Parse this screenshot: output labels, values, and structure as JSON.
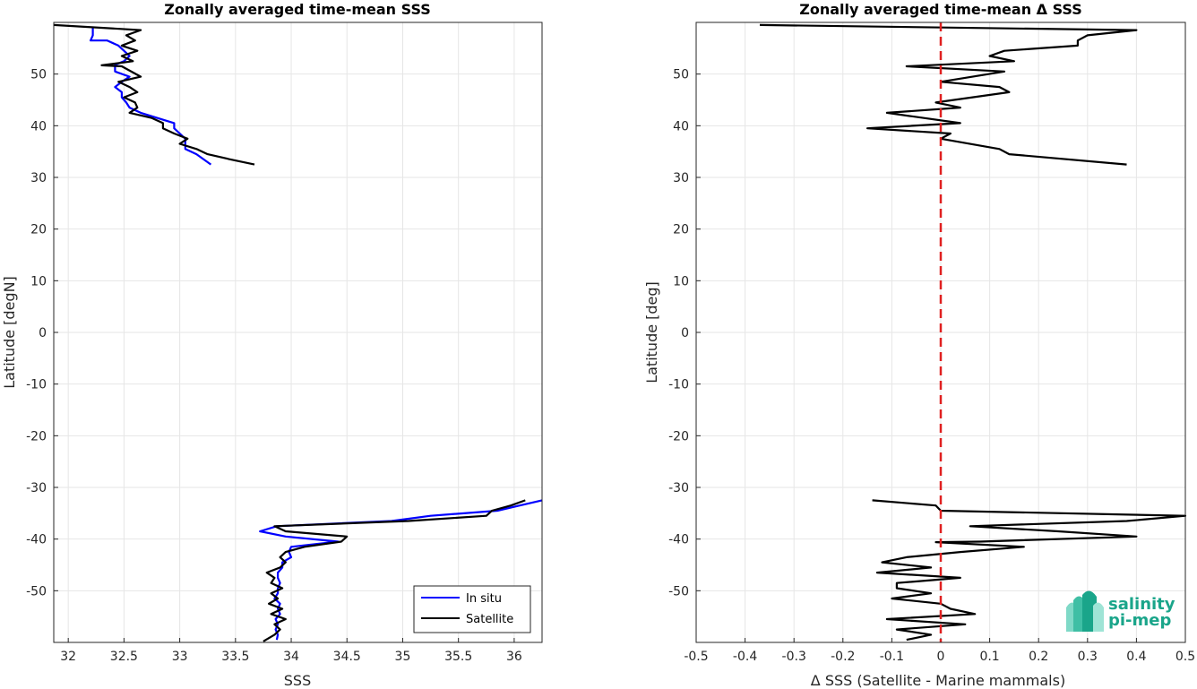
{
  "chart_data": [
    {
      "type": "line",
      "title": "Zonally averaged time-mean SSS",
      "xlabel": "SSS",
      "ylabel": "Latitude [degN]",
      "xlim": [
        31.87,
        36.25
      ],
      "ylim": [
        -60,
        60
      ],
      "xticks": [
        32,
        32.5,
        33,
        33.5,
        34,
        34.5,
        35,
        35.5,
        36
      ],
      "xtick_labels": [
        "32",
        "32.5",
        "33",
        "33.5",
        "34",
        "34.5",
        "35",
        "35.5",
        "36"
      ],
      "yticks": [
        -50,
        -40,
        -30,
        -20,
        -10,
        0,
        10,
        20,
        30,
        40,
        50
      ],
      "ytick_labels": [
        "-50",
        "-40",
        "-30",
        "-20",
        "-10",
        "0",
        "10",
        "20",
        "30",
        "40",
        "50"
      ],
      "grid": true,
      "legend": {
        "position": "bottom-right",
        "entries": [
          "In situ",
          "Satellite"
        ]
      },
      "series": [
        {
          "name": "In situ",
          "color": "#0000ff",
          "segments": [
            [
              [
                32.22,
                59.0
              ],
              [
                32.22,
                57.5
              ],
              [
                32.2,
                56.5
              ],
              [
                32.35,
                56.5
              ],
              [
                32.45,
                55.5
              ],
              [
                32.5,
                54.5
              ],
              [
                32.55,
                53.5
              ],
              [
                32.5,
                52.5
              ],
              [
                32.42,
                51.8
              ],
              [
                32.42,
                50.5
              ],
              [
                32.55,
                49.5
              ],
              [
                32.48,
                48.5
              ],
              [
                32.42,
                47.5
              ],
              [
                32.48,
                46.5
              ],
              [
                32.48,
                45.5
              ],
              [
                32.52,
                44.5
              ],
              [
                32.55,
                43.5
              ],
              [
                32.65,
                42.5
              ],
              [
                32.8,
                41.5
              ],
              [
                32.95,
                40.5
              ],
              [
                32.95,
                39.5
              ],
              [
                33.0,
                38.5
              ],
              [
                33.05,
                37.5
              ],
              [
                33.05,
                36.5
              ],
              [
                33.05,
                35.5
              ],
              [
                33.15,
                34.5
              ],
              [
                33.28,
                32.5
              ]
            ],
            [
              [
                36.25,
                -32.5
              ],
              [
                36.05,
                -33.5
              ],
              [
                35.85,
                -34.5
              ],
              [
                35.25,
                -35.5
              ],
              [
                34.9,
                -36.5
              ],
              [
                33.87,
                -37.5
              ],
              [
                33.72,
                -38.5
              ],
              [
                33.95,
                -39.5
              ],
              [
                34.42,
                -40.5
              ],
              [
                34.0,
                -41.5
              ],
              [
                33.98,
                -42.5
              ],
              [
                34.0,
                -43.5
              ],
              [
                33.92,
                -44.5
              ],
              [
                33.92,
                -45.5
              ],
              [
                33.88,
                -46.5
              ],
              [
                33.88,
                -47.5
              ],
              [
                33.9,
                -48.5
              ],
              [
                33.88,
                -49.5
              ],
              [
                33.88,
                -50.5
              ],
              [
                33.85,
                -51.5
              ],
              [
                33.9,
                -52.5
              ],
              [
                33.88,
                -53.5
              ],
              [
                33.9,
                -54.5
              ],
              [
                33.86,
                -55.5
              ],
              [
                33.88,
                -56.5
              ],
              [
                33.86,
                -57.5
              ],
              [
                33.88,
                -58.5
              ],
              [
                33.87,
                -59.5
              ]
            ]
          ]
        },
        {
          "name": "Satellite",
          "color": "#000000",
          "segments": [
            [
              [
                31.87,
                59.5
              ],
              [
                32.65,
                58.5
              ],
              [
                32.52,
                57.5
              ],
              [
                32.6,
                56.5
              ],
              [
                32.48,
                55.5
              ],
              [
                32.62,
                54.5
              ],
              [
                32.48,
                53.5
              ],
              [
                32.58,
                52.5
              ],
              [
                32.3,
                51.7
              ],
              [
                32.48,
                51.5
              ],
              [
                32.65,
                49.5
              ],
              [
                32.45,
                48.5
              ],
              [
                32.55,
                47.5
              ],
              [
                32.62,
                46.5
              ],
              [
                32.5,
                45.5
              ],
              [
                32.6,
                44.5
              ],
              [
                32.62,
                43.5
              ],
              [
                32.55,
                42.5
              ],
              [
                32.75,
                41.5
              ],
              [
                32.85,
                40.5
              ],
              [
                32.85,
                39.5
              ],
              [
                32.95,
                38.5
              ],
              [
                33.07,
                37.5
              ],
              [
                33.0,
                36.5
              ],
              [
                33.15,
                35.5
              ],
              [
                33.25,
                34.5
              ],
              [
                33.45,
                33.5
              ],
              [
                33.67,
                32.5
              ]
            ],
            [
              [
                36.1,
                -32.5
              ],
              [
                35.97,
                -33.5
              ],
              [
                35.8,
                -34.5
              ],
              [
                35.75,
                -35.5
              ],
              [
                35.05,
                -36.5
              ],
              [
                33.85,
                -37.5
              ],
              [
                33.95,
                -38.5
              ],
              [
                34.5,
                -39.5
              ],
              [
                34.45,
                -40.5
              ],
              [
                34.12,
                -41.5
              ],
              [
                33.95,
                -42.5
              ],
              [
                33.9,
                -43.5
              ],
              [
                33.95,
                -44.5
              ],
              [
                33.9,
                -45.5
              ],
              [
                33.78,
                -46.5
              ],
              [
                33.85,
                -47.5
              ],
              [
                33.82,
                -48.5
              ],
              [
                33.92,
                -49.5
              ],
              [
                33.82,
                -50.5
              ],
              [
                33.88,
                -51.5
              ],
              [
                33.8,
                -52.5
              ],
              [
                33.92,
                -53.5
              ],
              [
                33.82,
                -54.5
              ],
              [
                33.95,
                -55.5
              ],
              [
                33.85,
                -56.5
              ],
              [
                33.9,
                -57.5
              ],
              [
                33.85,
                -58.5
              ],
              [
                33.75,
                -59.8
              ]
            ]
          ]
        }
      ]
    },
    {
      "type": "line",
      "title": "Zonally averaged time-mean Δ SSS",
      "xlabel": "Δ SSS (Satellite - Marine mammals)",
      "ylabel": "Latitude [deg]",
      "xlim": [
        -0.5,
        0.5
      ],
      "ylim": [
        -60,
        60
      ],
      "xticks": [
        -0.5,
        -0.4,
        -0.3,
        -0.2,
        -0.1,
        0,
        0.1,
        0.2,
        0.3,
        0.4,
        0.5
      ],
      "xtick_labels": [
        "-0.5",
        "-0.4",
        "-0.3",
        "-0.2",
        "-0.1",
        "0",
        "0.1",
        "0.2",
        "0.3",
        "0.4",
        "0.5"
      ],
      "yticks": [
        -50,
        -40,
        -30,
        -20,
        -10,
        0,
        10,
        20,
        30,
        40,
        50
      ],
      "ytick_labels": [
        "-50",
        "-40",
        "-30",
        "-20",
        "-10",
        "0",
        "10",
        "20",
        "30",
        "40",
        "50"
      ],
      "grid": true,
      "reference_line": {
        "x": 0,
        "color": "#e02020",
        "style": "dashed"
      },
      "series": [
        {
          "color": "#000000",
          "segments": [
            [
              [
                -0.37,
                59.5
              ],
              [
                0.4,
                58.5
              ],
              [
                0.3,
                57.5
              ],
              [
                0.28,
                56.5
              ],
              [
                0.28,
                55.5
              ],
              [
                0.13,
                54.5
              ],
              [
                0.1,
                53.5
              ],
              [
                0.15,
                52.5
              ],
              [
                -0.07,
                51.5
              ],
              [
                0.13,
                50.5
              ],
              [
                0.0,
                48.5
              ],
              [
                0.12,
                47.5
              ],
              [
                0.14,
                46.5
              ],
              [
                -0.01,
                44.5
              ],
              [
                0.04,
                43.5
              ],
              [
                -0.11,
                42.5
              ],
              [
                0.04,
                40.5
              ],
              [
                -0.15,
                39.5
              ],
              [
                0.02,
                38.5
              ],
              [
                0.0,
                37.5
              ],
              [
                0.12,
                35.5
              ],
              [
                0.14,
                34.5
              ],
              [
                0.38,
                32.5
              ]
            ],
            [
              [
                -0.14,
                -32.5
              ],
              [
                -0.01,
                -33.5
              ],
              [
                0.0,
                -34.5
              ],
              [
                0.5,
                -35.5
              ],
              [
                0.38,
                -36.5
              ],
              [
                0.06,
                -37.5
              ],
              [
                0.24,
                -38.5
              ],
              [
                0.4,
                -39.5
              ],
              [
                0.08,
                -40.5
              ],
              [
                -0.01,
                -40.6
              ],
              [
                0.17,
                -41.5
              ],
              [
                0.04,
                -42.5
              ],
              [
                -0.07,
                -43.5
              ],
              [
                -0.12,
                -44.5
              ],
              [
                -0.02,
                -45.5
              ],
              [
                -0.13,
                -46.5
              ],
              [
                0.04,
                -47.5
              ],
              [
                -0.09,
                -48.5
              ],
              [
                -0.09,
                -49.5
              ],
              [
                -0.02,
                -50.5
              ],
              [
                -0.1,
                -51.5
              ],
              [
                0.0,
                -52.5
              ],
              [
                0.02,
                -53.5
              ],
              [
                0.07,
                -54.5
              ],
              [
                -0.11,
                -55.5
              ],
              [
                0.05,
                -56.5
              ],
              [
                -0.09,
                -57.5
              ],
              [
                -0.02,
                -58.5
              ],
              [
                -0.07,
                -59.5
              ]
            ]
          ]
        }
      ]
    }
  ],
  "logo": {
    "line1": "salinity",
    "line2": "pi-mep",
    "color": "#1aa58a"
  }
}
